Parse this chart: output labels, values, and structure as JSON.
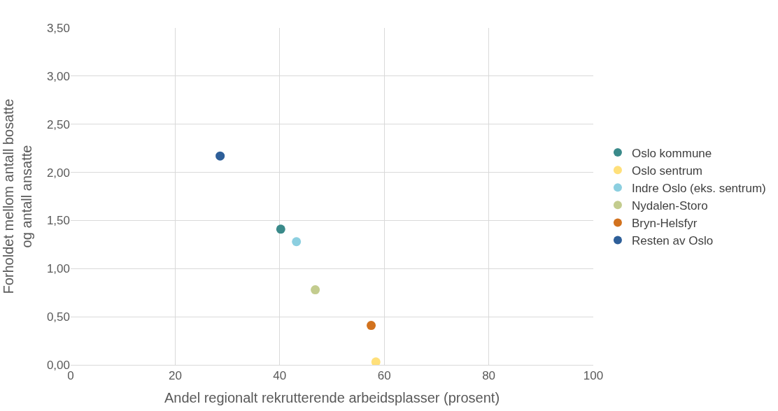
{
  "chart_data": {
    "type": "scatter",
    "xlabel": "Andel regionalt rekrutterende arbeidsplasser (prosent)",
    "ylabel": "Forholdet mellom antall bosatte og antall ansatte",
    "xlim": [
      0,
      100
    ],
    "xticks": [
      0,
      20,
      40,
      60,
      80,
      100
    ],
    "ylim": [
      0,
      3.5
    ],
    "yticks": [
      {
        "value": 0,
        "label": "0,00"
      },
      {
        "value": 0.5,
        "label": "0,50"
      },
      {
        "value": 1,
        "label": "1,00"
      },
      {
        "value": 1.5,
        "label": "1,50"
      },
      {
        "value": 2,
        "label": "2,00"
      },
      {
        "value": 2.5,
        "label": "2,50"
      },
      {
        "value": 3,
        "label": "3,00"
      },
      {
        "value": 3.5,
        "label": "3,50"
      }
    ],
    "grid": true,
    "legend": "right",
    "marker": "circle",
    "series": [
      {
        "name": "Oslo kommune",
        "color": "#3a8a8a",
        "x": [
          40.2
        ],
        "values": [
          1.41
        ]
      },
      {
        "name": "Oslo sentrum",
        "color": "#ffe07a",
        "x": [
          58.4
        ],
        "values": [
          0.03
        ]
      },
      {
        "name": "Indre Oslo (eks. sentrum)",
        "color": "#8ccfe0",
        "x": [
          43.2
        ],
        "values": [
          1.28
        ]
      },
      {
        "name": "Nydalen-Storo",
        "color": "#c3cc8e",
        "x": [
          46.8
        ],
        "values": [
          0.78
        ]
      },
      {
        "name": "Bryn-Helsfyr",
        "color": "#d2721e",
        "x": [
          57.5
        ],
        "values": [
          0.41
        ]
      },
      {
        "name": "Resten av Oslo",
        "color": "#2e5f99",
        "x": [
          28.6
        ],
        "values": [
          2.17
        ]
      }
    ]
  }
}
